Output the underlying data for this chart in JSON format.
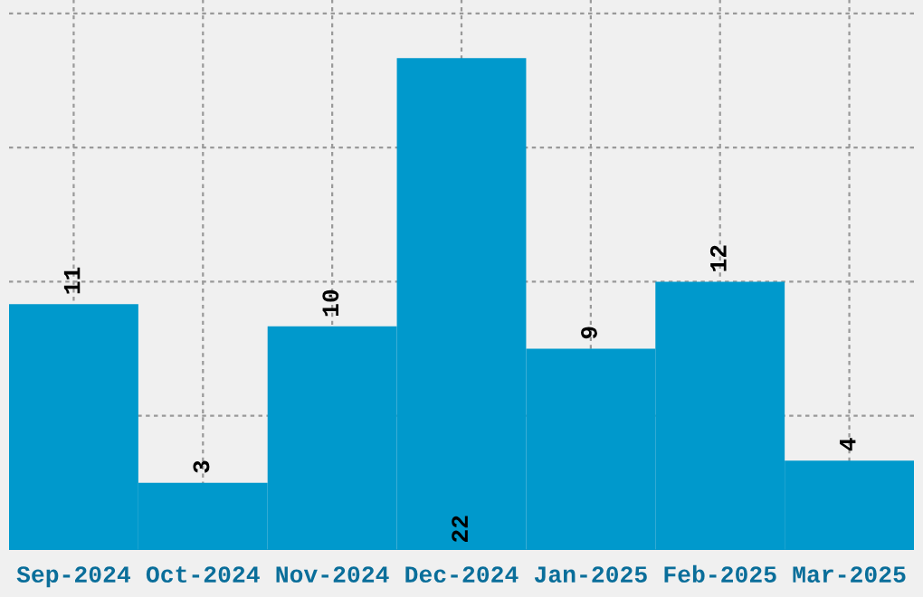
{
  "chart_data": {
    "type": "bar",
    "categories": [
      "Sep-2024",
      "Oct-2024",
      "Nov-2024",
      "Dec-2024",
      "Jan-2025",
      "Feb-2025",
      "Mar-2025"
    ],
    "values": [
      11,
      3,
      10,
      22,
      9,
      12,
      4
    ],
    "color": "#0099cc",
    "ylim": [
      0,
      24.6
    ],
    "yticks": [
      {
        "value": 0,
        "label": null
      },
      {
        "value": 6,
        "label": null
      },
      {
        "value": 12,
        "label": null
      },
      {
        "value": 18,
        "label": null
      },
      {
        "value": 24,
        "label": null
      }
    ],
    "grid": true,
    "tick_labels": "x",
    "data_labels": true
  }
}
